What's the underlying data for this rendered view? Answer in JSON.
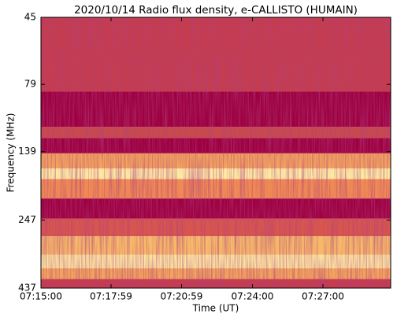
{
  "chart_data": {
    "type": "spectrogram",
    "title": "2020/10/14  Radio flux density, e-CALLISTO (HUMAIN)",
    "x_label": "Time (UT)",
    "y_label": "Frequency (MHz)",
    "xlim": [
      "07:15:00",
      "07:29:53"
    ],
    "xticks": [
      "07:15:00",
      "07:17:59",
      "07:20:59",
      "07:24:00",
      "07:27:00"
    ],
    "ylim": [
      437,
      45
    ],
    "yticks": [
      45,
      79,
      139,
      247,
      437
    ],
    "log_y": true,
    "bands": [
      {
        "range": [
          45,
          84
        ],
        "color": "#c43c4e"
      },
      {
        "range": [
          84,
          113
        ],
        "color": "#9e0142"
      },
      {
        "range": [
          113,
          124
        ],
        "color": "#c94a4c"
      },
      {
        "range": [
          124,
          141
        ],
        "color": "#9e0142"
      },
      {
        "range": [
          141,
          160
        ],
        "color": "#f3a35e"
      },
      {
        "range": [
          160,
          175
        ],
        "color": "#fde9a4"
      },
      {
        "range": [
          175,
          206
        ],
        "color": "#f08a55"
      },
      {
        "range": [
          206,
          244
        ],
        "color": "#9e0142"
      },
      {
        "range": [
          244,
          283
        ],
        "color": "#d8564e"
      },
      {
        "range": [
          283,
          330
        ],
        "color": "#f6b86a"
      },
      {
        "range": [
          330,
          370
        ],
        "color": "#fbe3a0"
      },
      {
        "range": [
          370,
          405
        ],
        "color": "#f3a35e"
      },
      {
        "range": [
          405,
          437
        ],
        "color": "#c43c4e"
      }
    ]
  }
}
